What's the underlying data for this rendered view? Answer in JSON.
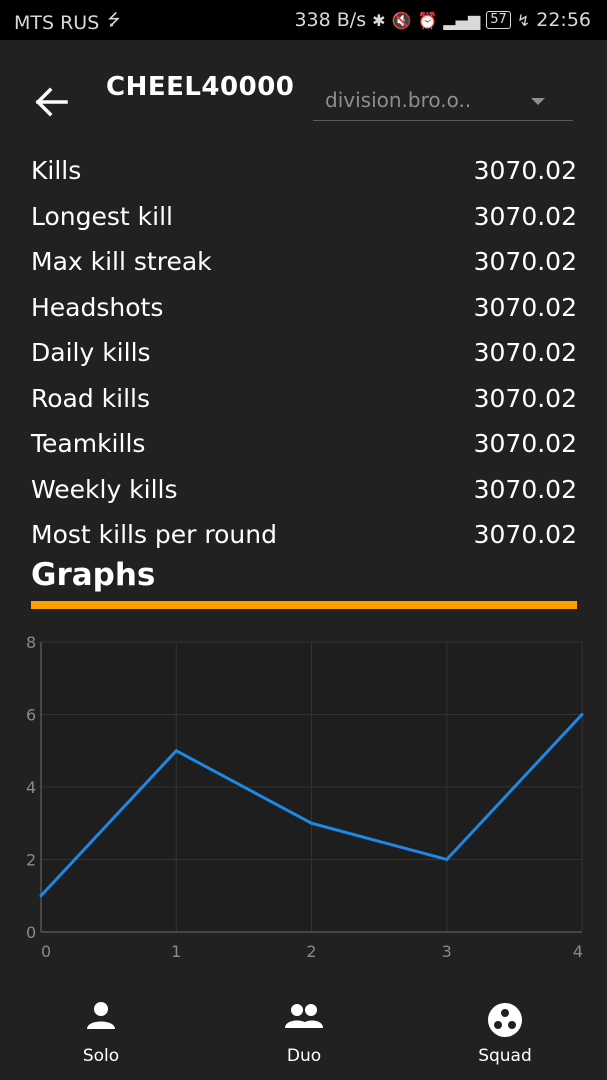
{
  "status_bar": {
    "carrier": "MTS RUS",
    "speed": "338 B/s",
    "battery": "57",
    "time": "22:56"
  },
  "app_bar": {
    "title": "CHEEL40000",
    "server_select": "division.bro.o.."
  },
  "stats": [
    {
      "label": "Kills",
      "value": "3070.02"
    },
    {
      "label": "Longest kill",
      "value": "3070.02"
    },
    {
      "label": "Max kill streak",
      "value": "3070.02"
    },
    {
      "label": "Headshots",
      "value": "3070.02"
    },
    {
      "label": "Daily kills",
      "value": "3070.02"
    },
    {
      "label": "Road kills",
      "value": "3070.02"
    },
    {
      "label": "Teamkills",
      "value": "3070.02"
    },
    {
      "label": "Weekly kills",
      "value": "3070.02"
    },
    {
      "label": "Most kills per round",
      "value": "3070.02"
    }
  ],
  "graphs_title": "Graphs",
  "colors": {
    "accent": "#ffa000",
    "line": "#1e88e5",
    "background": "#212121"
  },
  "chart_data": {
    "type": "line",
    "title": "",
    "xlabel": "",
    "ylabel": "",
    "x": [
      0,
      1,
      2,
      3,
      4
    ],
    "series": [
      {
        "name": "",
        "values": [
          1,
          5,
          3,
          2,
          6
        ]
      }
    ],
    "x_ticks": [
      "0",
      "1",
      "2",
      "3",
      "4"
    ],
    "y_ticks": [
      "0",
      "2",
      "4",
      "6",
      "8"
    ],
    "xlim": [
      0,
      4
    ],
    "ylim": [
      0,
      8
    ],
    "grid": true
  },
  "bottom_nav": [
    {
      "label": "Solo",
      "icon": "person-icon"
    },
    {
      "label": "Duo",
      "icon": "people-icon"
    },
    {
      "label": "Squad",
      "icon": "squad-icon"
    }
  ]
}
